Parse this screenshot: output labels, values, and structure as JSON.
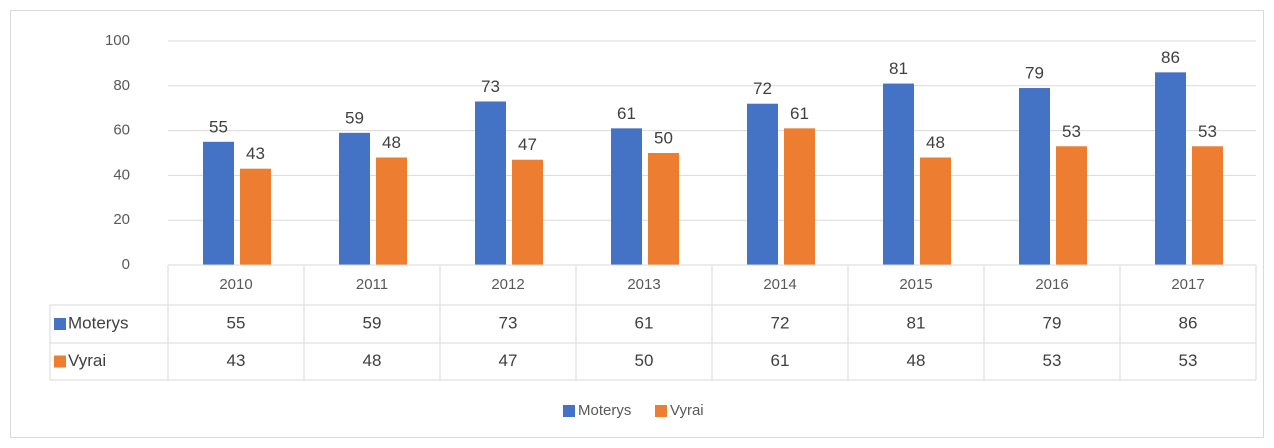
{
  "chart_data": {
    "type": "bar",
    "categories": [
      "2010",
      "2011",
      "2012",
      "2013",
      "2014",
      "2015",
      "2016",
      "2017"
    ],
    "series": [
      {
        "name": "Moterys",
        "color": "#4472c4",
        "values": [
          55,
          59,
          73,
          61,
          72,
          81,
          79,
          86
        ]
      },
      {
        "name": "Vyrai",
        "color": "#ed7d31",
        "values": [
          43,
          48,
          47,
          50,
          61,
          48,
          53,
          53
        ]
      }
    ],
    "ylim": [
      0,
      100
    ],
    "yticks": [
      0,
      20,
      40,
      60,
      80,
      100
    ],
    "grid": true,
    "data_labels": true,
    "data_table": true,
    "legend": "bottom"
  }
}
